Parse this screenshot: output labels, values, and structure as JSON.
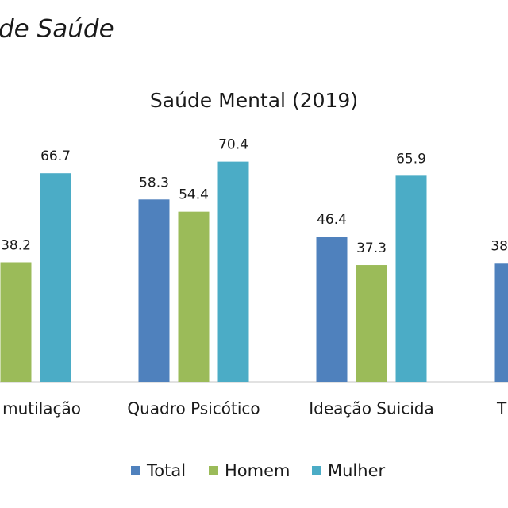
{
  "header": {
    "title": "de Saúde"
  },
  "chart_data": {
    "type": "bar",
    "title": "Saúde Mental (2019)",
    "categories": [
      "mutilação",
      "Quadro Psicótico",
      "Ideação  Suicida",
      "T"
    ],
    "series": [
      {
        "name": "Total",
        "color": "#4f81bd",
        "values": [
          null,
          58.3,
          46.4,
          38
        ]
      },
      {
        "name": "Homem",
        "color": "#9bbb59",
        "values": [
          38.2,
          54.4,
          37.3,
          null
        ]
      },
      {
        "name": "Mulher",
        "color": "#4bacc6",
        "values": [
          66.7,
          70.4,
          65.9,
          null
        ]
      }
    ],
    "ylim": [
      0,
      100
    ]
  }
}
